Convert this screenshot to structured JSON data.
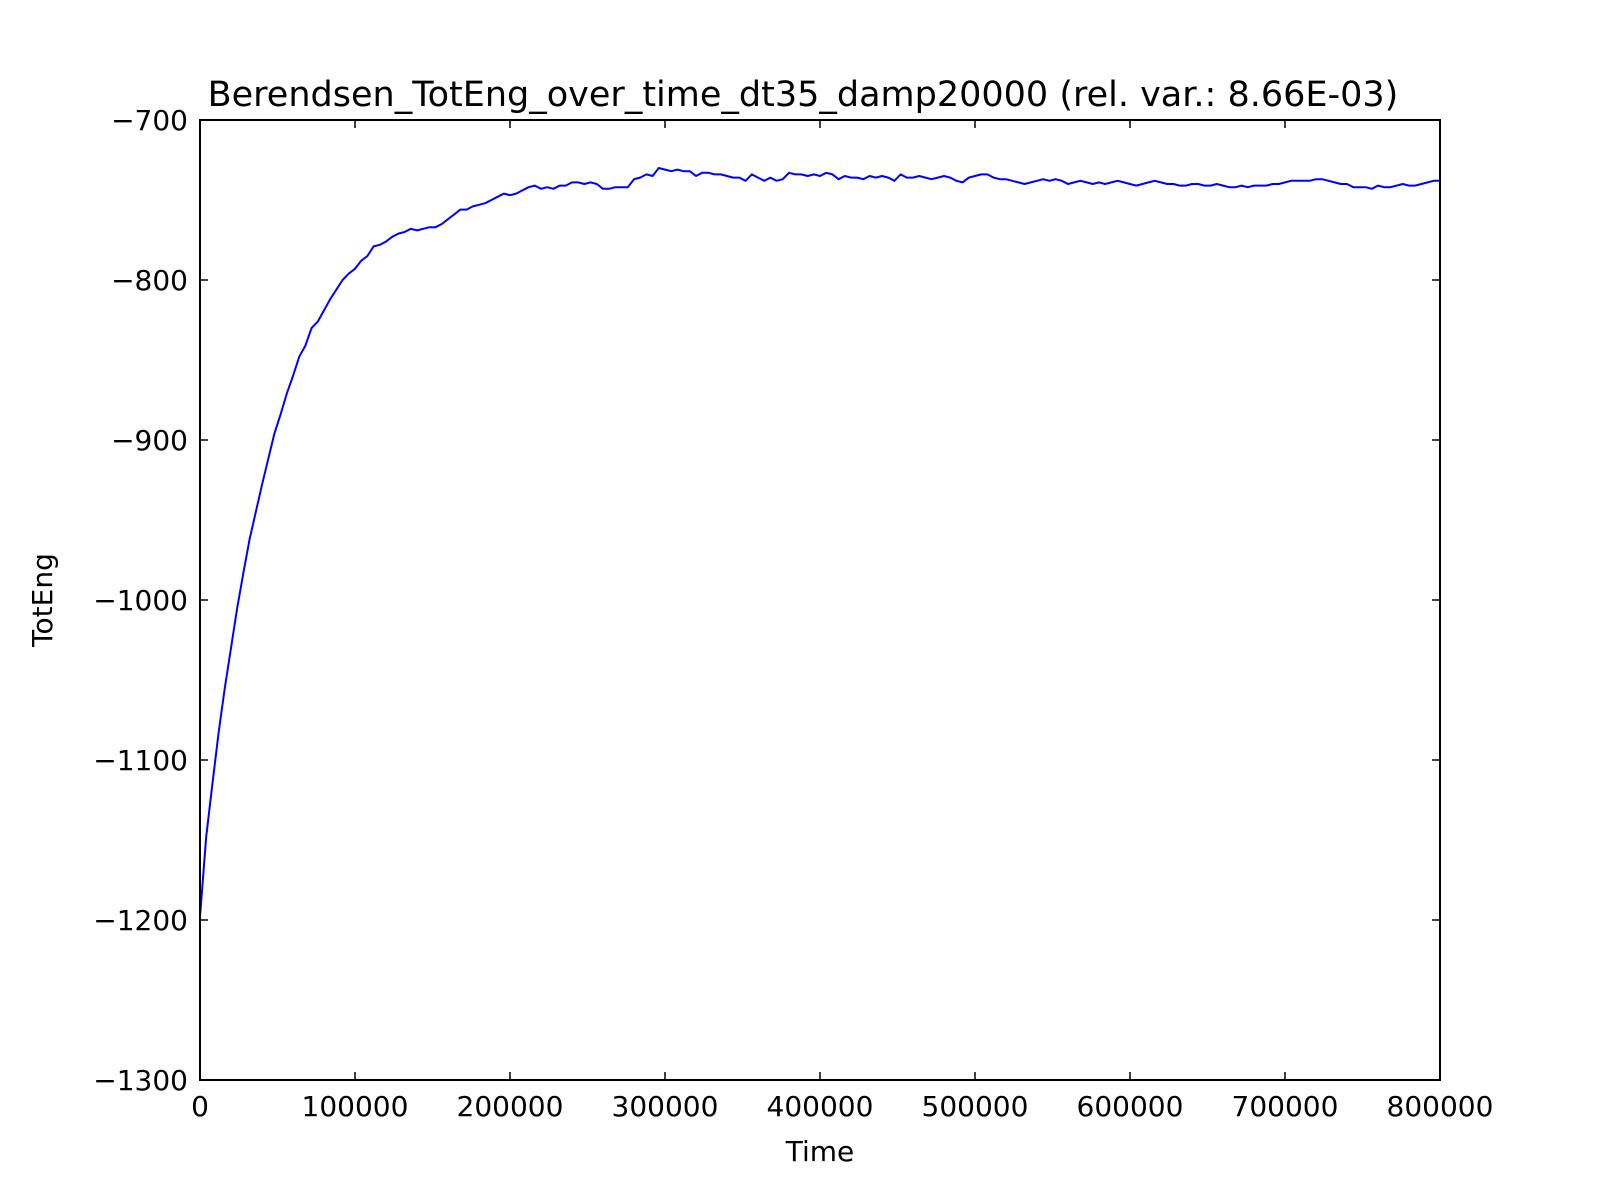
{
  "chart_data": {
    "type": "line",
    "title": "Berendsen_TotEng_over_time_dt35_damp20000 (rel. var.: 8.66E-03)",
    "xlabel": "Time",
    "ylabel": "TotEng",
    "xlim": [
      0,
      800000
    ],
    "ylim": [
      -1300,
      -700
    ],
    "xticks": [
      0,
      100000,
      200000,
      300000,
      400000,
      500000,
      600000,
      700000,
      800000
    ],
    "xtick_labels": [
      "0",
      "100000",
      "200000",
      "300000",
      "400000",
      "500000",
      "600000",
      "700000",
      "800000"
    ],
    "yticks": [
      -700,
      -800,
      -900,
      -1000,
      -1100,
      -1200,
      -1300
    ],
    "ytick_labels": [
      "−700",
      "−800",
      "−900",
      "−1000",
      "−1100",
      "−1200",
      "−1300"
    ],
    "grid": false,
    "legend": false,
    "series": [
      {
        "color": "#0000ff",
        "x": [
          0,
          4000,
          8000,
          12000,
          16000,
          20000,
          24000,
          28000,
          32000,
          36000,
          40000,
          44000,
          48000,
          52000,
          56000,
          60000,
          64000,
          68000,
          72000,
          76000,
          80000,
          84000,
          88000,
          92000,
          96000,
          100000,
          104000,
          108000,
          112000,
          116000,
          120000,
          124000,
          128000,
          132000,
          136000,
          140000,
          144000,
          148000,
          152000,
          156000,
          160000,
          164000,
          168000,
          172000,
          176000,
          180000,
          184000,
          188000,
          192000,
          196000,
          200000,
          204000,
          208000,
          212000,
          216000,
          220000,
          224000,
          228000,
          232000,
          236000,
          240000,
          244000,
          248000,
          252000,
          256000,
          260000,
          264000,
          268000,
          272000,
          276000,
          280000,
          284000,
          288000,
          292000,
          296000,
          300000,
          304000,
          308000,
          312000,
          316000,
          320000,
          324000,
          328000,
          332000,
          336000,
          340000,
          344000,
          348000,
          352000,
          356000,
          360000,
          364000,
          368000,
          372000,
          376000,
          380000,
          384000,
          388000,
          392000,
          396000,
          400000,
          404000,
          408000,
          412000,
          416000,
          420000,
          424000,
          428000,
          432000,
          436000,
          440000,
          444000,
          448000,
          452000,
          456000,
          460000,
          464000,
          468000,
          472000,
          476000,
          480000,
          484000,
          488000,
          492000,
          496000,
          500000,
          504000,
          508000,
          512000,
          516000,
          520000,
          524000,
          528000,
          532000,
          536000,
          540000,
          544000,
          548000,
          552000,
          556000,
          560000,
          564000,
          568000,
          572000,
          576000,
          580000,
          584000,
          588000,
          592000,
          596000,
          600000,
          604000,
          608000,
          612000,
          616000,
          620000,
          624000,
          628000,
          632000,
          636000,
          640000,
          644000,
          648000,
          652000,
          656000,
          660000,
          664000,
          668000,
          672000,
          676000,
          680000,
          684000,
          688000,
          692000,
          696000,
          700000,
          704000,
          708000,
          712000,
          716000,
          720000,
          724000,
          728000,
          732000,
          736000,
          740000,
          744000,
          748000,
          752000,
          756000,
          760000,
          764000,
          768000,
          772000,
          776000,
          780000,
          784000,
          788000,
          792000,
          796000,
          800000
        ],
        "y": [
          -1198,
          -1148,
          -1115,
          -1083,
          -1055,
          -1030,
          -1005,
          -983,
          -962,
          -945,
          -928,
          -912,
          -896,
          -884,
          -871,
          -860,
          -848,
          -841,
          -830,
          -826,
          -819,
          -812,
          -806,
          -800,
          -796,
          -793,
          -788,
          -785,
          -779,
          -778,
          -776,
          -773,
          -771,
          -770,
          -768,
          -769,
          -768,
          -767,
          -767,
          -765,
          -762,
          -759,
          -756,
          -756,
          -754,
          -753,
          -752,
          -750,
          -748,
          -746,
          -747,
          -746,
          -744,
          -742,
          -741,
          -743,
          -742,
          -743,
          -741,
          -741,
          -739,
          -739,
          -740,
          -739,
          -740,
          -743,
          -743,
          -742,
          -742,
          -742,
          -737,
          -736,
          -734,
          -735,
          -730,
          -731,
          -732,
          -731,
          -732,
          -732,
          -735,
          -733,
          -733,
          -734,
          -734,
          -735,
          -736,
          -736,
          -738,
          -734,
          -736,
          -738,
          -736,
          -738,
          -737,
          -733,
          -734,
          -734,
          -735,
          -734,
          -735,
          -733,
          -734,
          -737,
          -735,
          -736,
          -736,
          -737,
          -735,
          -736,
          -735,
          -736,
          -738,
          -734,
          -736,
          -736,
          -735,
          -736,
          -737,
          -736,
          -735,
          -736,
          -738,
          -739,
          -736,
          -735,
          -734,
          -734,
          -736,
          -737,
          -737,
          -738,
          -739,
          -740,
          -739,
          -738,
          -737,
          -738,
          -737,
          -738,
          -740,
          -739,
          -738,
          -739,
          -740,
          -739,
          -740,
          -739,
          -738,
          -739,
          -740,
          -741,
          -740,
          -739,
          -738,
          -739,
          -740,
          -740,
          -741,
          -741,
          -740,
          -740,
          -741,
          -741,
          -740,
          -741,
          -742,
          -742,
          -741,
          -742,
          -741,
          -741,
          -741,
          -740,
          -740,
          -739,
          -738,
          -738,
          -738,
          -738,
          -737,
          -737,
          -738,
          -739,
          -740,
          -740,
          -742,
          -742,
          -742,
          -743,
          -741,
          -742,
          -742,
          -741,
          -740,
          -741,
          -741,
          -740,
          -739,
          -738,
          -738
        ]
      }
    ]
  }
}
